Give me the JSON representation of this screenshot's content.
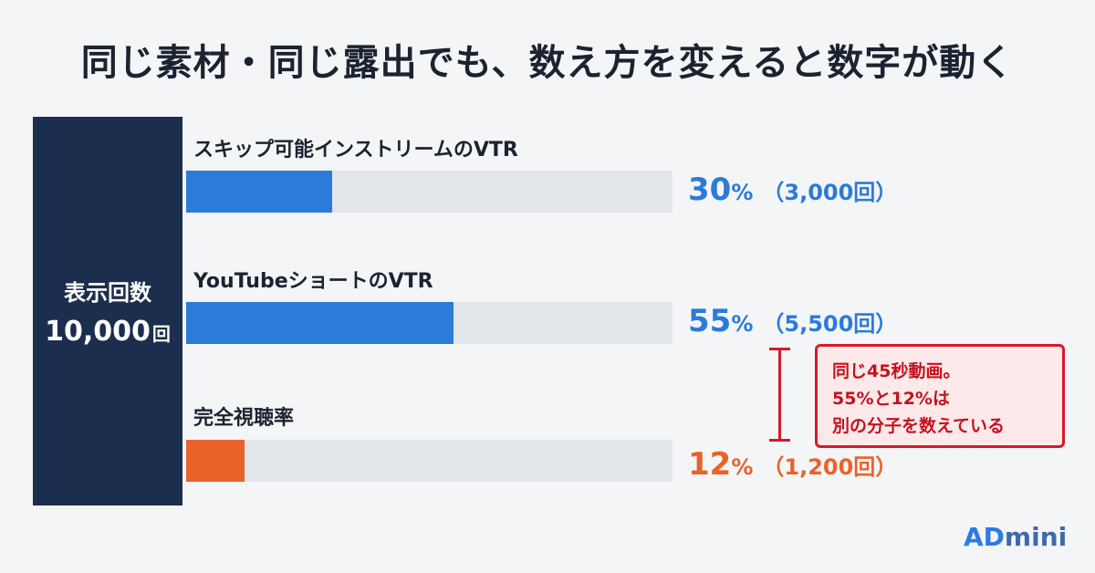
{
  "title": "同じ素材・同じ露出でも、数え方を変えると数字が動く",
  "impressions": {
    "label": "表示回数",
    "value": "10,000",
    "unit": "回"
  },
  "chart_data": {
    "type": "bar",
    "orientation": "horizontal",
    "categories": [
      "スキップ可能インストリームのVTR",
      "YouTubeショートのVTR",
      "完全視聴率"
    ],
    "values": [
      30,
      55,
      12
    ],
    "value_labels": [
      "30",
      "55",
      "12"
    ],
    "unit": "%",
    "counts": [
      "（3,000回）",
      "（5,500回）",
      "（1,200回）"
    ],
    "colors": [
      "#2b7bd9",
      "#2b7bd9",
      "#e8632a"
    ],
    "track_color": "#e2e5ea",
    "xlim": [
      0,
      100
    ],
    "grid": false,
    "legend": "none"
  },
  "annotation": {
    "lines": [
      "同じ45秒動画。",
      "55%と12%は",
      "別の分子を数えている"
    ],
    "color": "#d7192a"
  },
  "brand": {
    "strong": "AD",
    "light": "mini"
  }
}
